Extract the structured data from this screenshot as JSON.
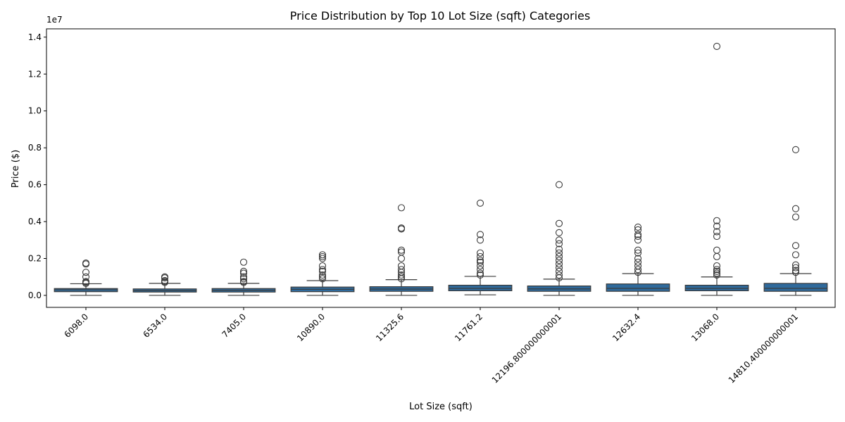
{
  "chart_data": {
    "type": "box",
    "title": "Price Distribution by Top 10 Lot Size (sqft) Categories",
    "xlabel": "Lot Size (sqft)",
    "ylabel": "Price ($)",
    "y_scale_label": "1e7",
    "ylim": [
      -0.065,
      1.445
    ],
    "y_ticks": [
      0.0,
      0.2,
      0.4,
      0.6,
      0.8,
      1.0,
      1.2,
      1.4
    ],
    "y_tick_labels": [
      "0.0",
      "0.2",
      "0.4",
      "0.6",
      "0.8",
      "1.0",
      "1.2",
      "1.4"
    ],
    "box_color": "#2f6a9c",
    "grid": false,
    "legend": "none",
    "categories": [
      "6098.0",
      "6534.0",
      "7405.0",
      "10890.0",
      "11325.6",
      "11761.2",
      "12196.800000000001",
      "12632.4",
      "13068.0",
      "14810.400000000001"
    ],
    "boxes": [
      {
        "category": "6098.0",
        "whisker_low": 0.0,
        "q1": 0.02,
        "median": 0.03,
        "q3": 0.037,
        "whisker_high": 0.063,
        "outliers": [
          0.065,
          0.07,
          0.075,
          0.1,
          0.125,
          0.17,
          0.175
        ]
      },
      {
        "category": "6534.0",
        "whisker_low": 0.0,
        "q1": 0.018,
        "median": 0.026,
        "q3": 0.035,
        "whisker_high": 0.065,
        "outliers": [
          0.07,
          0.075,
          0.08,
          0.095,
          0.1
        ]
      },
      {
        "category": "7405.0",
        "whisker_low": 0.0,
        "q1": 0.018,
        "median": 0.028,
        "q3": 0.037,
        "whisker_high": 0.065,
        "outliers": [
          0.07,
          0.075,
          0.09,
          0.1,
          0.12,
          0.13,
          0.18
        ]
      },
      {
        "category": "10890.0",
        "whisker_low": 0.0,
        "q1": 0.02,
        "median": 0.033,
        "q3": 0.045,
        "whisker_high": 0.08,
        "outliers": [
          0.09,
          0.1,
          0.11,
          0.13,
          0.14,
          0.16,
          0.2,
          0.21,
          0.22
        ]
      },
      {
        "category": "11325.6",
        "whisker_low": 0.0,
        "q1": 0.022,
        "median": 0.034,
        "q3": 0.047,
        "whisker_high": 0.085,
        "outliers": [
          0.09,
          0.1,
          0.11,
          0.125,
          0.14,
          0.16,
          0.2,
          0.235,
          0.245,
          0.36,
          0.365,
          0.475
        ]
      },
      {
        "category": "11761.2",
        "whisker_low": 0.003,
        "q1": 0.025,
        "median": 0.038,
        "q3": 0.055,
        "whisker_high": 0.103,
        "outliers": [
          0.11,
          0.12,
          0.14,
          0.16,
          0.18,
          0.19,
          0.21,
          0.23,
          0.3,
          0.33,
          0.5
        ]
      },
      {
        "category": "12196.800000000001",
        "whisker_low": 0.0,
        "q1": 0.022,
        "median": 0.035,
        "q3": 0.051,
        "whisker_high": 0.088,
        "outliers": [
          0.095,
          0.11,
          0.13,
          0.15,
          0.17,
          0.19,
          0.21,
          0.23,
          0.25,
          0.28,
          0.3,
          0.34,
          0.39,
          0.6
        ]
      },
      {
        "category": "12632.4",
        "whisker_low": 0.0,
        "q1": 0.022,
        "median": 0.038,
        "q3": 0.062,
        "whisker_high": 0.118,
        "outliers": [
          0.125,
          0.14,
          0.16,
          0.18,
          0.2,
          0.23,
          0.245,
          0.3,
          0.32,
          0.33,
          0.355,
          0.37
        ]
      },
      {
        "category": "13068.0",
        "whisker_low": 0.0,
        "q1": 0.025,
        "median": 0.038,
        "q3": 0.055,
        "whisker_high": 0.1,
        "outliers": [
          0.11,
          0.12,
          0.13,
          0.14,
          0.16,
          0.21,
          0.245,
          0.32,
          0.345,
          0.375,
          0.405,
          1.35
        ]
      },
      {
        "category": "14810.400000000001",
        "whisker_low": 0.0,
        "q1": 0.022,
        "median": 0.038,
        "q3": 0.065,
        "whisker_high": 0.118,
        "outliers": [
          0.125,
          0.135,
          0.15,
          0.165,
          0.22,
          0.27,
          0.425,
          0.47,
          0.79
        ]
      }
    ]
  }
}
